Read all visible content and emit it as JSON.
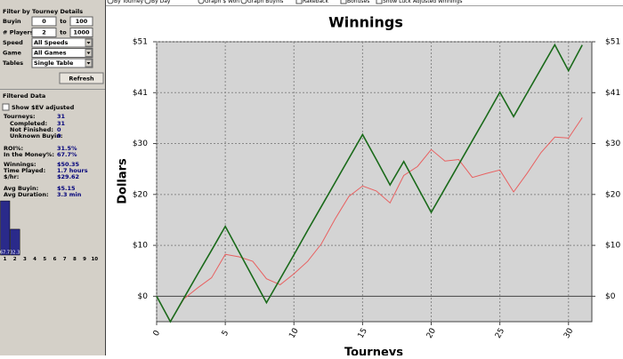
{
  "toolbar": [
    "By Tourney",
    "By Day",
    "Graph $ Won",
    "Graph Buyins",
    "Rakeback",
    "Bonuses",
    "Show Luck Adjusted Winnings"
  ],
  "panel": {
    "filter_title": "Filter by Tourney Details",
    "ranges": [
      {
        "label": "Buyin",
        "min": 0,
        "to": "to",
        "max": 100
      },
      {
        "label": "# Players",
        "min": 2,
        "to": "to",
        "max": 1000
      }
    ],
    "selects": [
      {
        "label": "Speed",
        "value": "All Speeds"
      },
      {
        "label": "Game",
        "value": "All Games"
      },
      {
        "label": "Tables",
        "value": "Single Table"
      }
    ],
    "refresh": "Refresh",
    "filtered_title": "Filtered Data",
    "ev_checkbox": "Show $EV adjusted",
    "stats": [
      {
        "label": "Tourneys:",
        "value": "31"
      },
      {
        "label": "Completed:",
        "value": "31"
      },
      {
        "label": "Not Finished:",
        "value": "0"
      },
      {
        "label": "Unknown Buyin:",
        "value": "0"
      },
      {
        "label": "ROI%:",
        "value": "31.5%"
      },
      {
        "label": "In the Money%:",
        "value": "67.7%"
      },
      {
        "label": "Winnings:",
        "value": "$50.35"
      },
      {
        "label": "Time Played:",
        "value": "1.7 hours"
      },
      {
        "label": "$/hr:",
        "value": "$29.62"
      },
      {
        "label": "Avg Buyin:",
        "value": "$5.15"
      },
      {
        "label": "Avg Duration:",
        "value": "3.3 min"
      }
    ]
  },
  "chart_data": [
    {
      "type": "line",
      "title": "Winnings",
      "x_label": "Tourneys",
      "y_label": "Dollars",
      "x": [
        0,
        1,
        2,
        3,
        4,
        5,
        6,
        7,
        8,
        9,
        10,
        11,
        12,
        13,
        14,
        15,
        16,
        17,
        18,
        19,
        20,
        21,
        22,
        23,
        24,
        25,
        26,
        27,
        28,
        29,
        30,
        31
      ],
      "series": [
        {
          "color": "#e86060",
          "values": [
            0,
            -5,
            -0.5,
            1.7,
            3.7,
            8.4,
            7.9,
            7,
            3.5,
            2.3,
            4.5,
            7,
            10.5,
            15.5,
            20,
            22.1,
            21.1,
            18.7,
            24.2,
            26,
            29.4,
            27.1,
            27.4,
            23.8,
            24.6,
            25.3,
            20.9,
            24.7,
            28.8,
            31.9,
            31.7,
            35.8
          ]
        },
        {
          "color": "#1a6a1a",
          "values": [
            0,
            -5.1,
            -0.3,
            4.5,
            9.2,
            14,
            8.9,
            3.8,
            -1.3,
            3.5,
            8.3,
            13.2,
            18,
            22.8,
            27.6,
            32.4,
            27.4,
            22.3,
            27,
            21.9,
            16.8,
            21.6,
            26.4,
            31.2,
            36,
            40.9,
            36,
            40.8,
            45.6,
            50.4,
            45.2,
            50.35
          ]
        }
      ],
      "xlim": [
        0,
        31.7
      ],
      "xticks": [
        0,
        5,
        10,
        15,
        20,
        25,
        30
      ],
      "ylim": [
        -5.1,
        51
      ],
      "yticks": [
        {
          "value": 0,
          "label": "$0"
        },
        {
          "value": 10.2,
          "label": "$10"
        },
        {
          "value": 20.4,
          "label": "$20"
        },
        {
          "value": 30.6,
          "label": "$30"
        },
        {
          "value": 40.8,
          "label": "$41"
        },
        {
          "value": 51,
          "label": "$51"
        }
      ],
      "grid": true
    },
    {
      "type": "bar",
      "categories": [
        "1",
        "2",
        "3",
        "4",
        "5",
        "6",
        "7",
        "8",
        "9",
        "10"
      ],
      "values": [
        67.7,
        32.3,
        null,
        null,
        null,
        null,
        null,
        null,
        null,
        null
      ],
      "color": "#2a2a8a",
      "ylim": [
        0,
        100
      ]
    }
  ]
}
